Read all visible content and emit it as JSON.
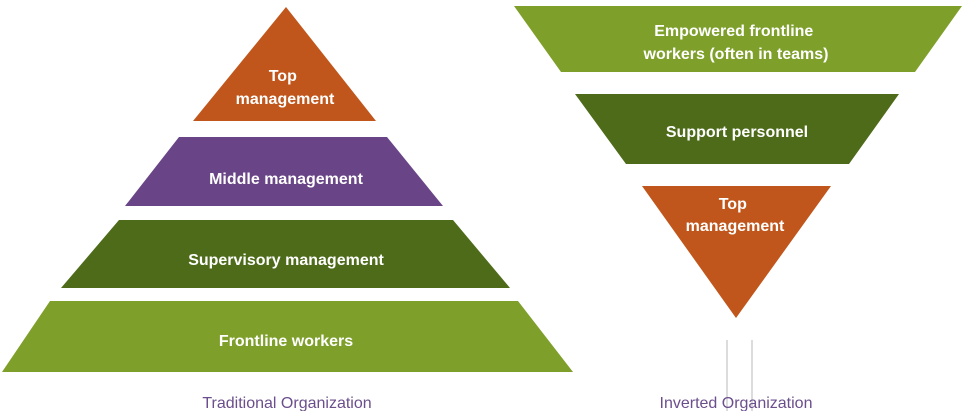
{
  "traditional": {
    "caption": "Traditional Organization",
    "levels": [
      {
        "line1": "Top",
        "line2": "management",
        "color": "#c0561b"
      },
      {
        "line1": "Middle management",
        "color": "#694587"
      },
      {
        "line1": "Supervisory management",
        "color": "#4e6b1a"
      },
      {
        "line1": "Frontline workers",
        "color": "#7ea02b"
      }
    ]
  },
  "inverted": {
    "caption": "Inverted Organization",
    "levels": [
      {
        "line1": "Empowered frontline",
        "line2": "workers (often in teams)",
        "color": "#7ea02b"
      },
      {
        "line1": "Support personnel",
        "color": "#4e6b1a"
      },
      {
        "line1": "Top",
        "line2": "management",
        "color": "#c0561b"
      }
    ]
  },
  "caption_color": "#6b4e8c"
}
